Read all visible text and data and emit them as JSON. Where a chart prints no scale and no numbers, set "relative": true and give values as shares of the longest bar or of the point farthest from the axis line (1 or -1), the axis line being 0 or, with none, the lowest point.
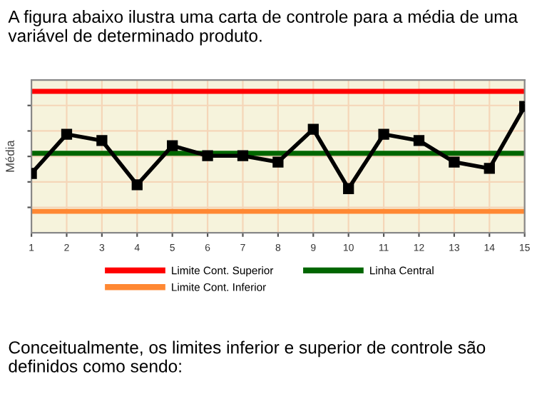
{
  "chart_data": {
    "type": "line",
    "title": "A figura abaixo ilustra uma carta de controle para a média de uma variável de determinado produto.",
    "ylabel": "Média",
    "x": [
      1,
      2,
      3,
      4,
      5,
      6,
      7,
      8,
      9,
      10,
      11,
      12,
      13,
      14,
      15
    ],
    "xlim": [
      1,
      15
    ],
    "xticks": [
      1,
      2,
      3,
      4,
      5,
      6,
      7,
      8,
      9,
      10,
      11,
      12,
      13,
      14,
      15
    ],
    "relative": true,
    "series": [
      {
        "color": "#000000",
        "values": [
          0.47,
          0.78,
          0.73,
          0.38,
          0.69,
          0.61,
          0.61,
          0.56,
          0.82,
          0.35,
          0.78,
          0.73,
          0.56,
          0.51,
          1
        ]
      }
    ],
    "marker": "square",
    "grid": true,
    "legend": "bottom",
    "ref_lines": [
      {
        "axis": "y",
        "value": 1.12,
        "label": "Limite Cont. Superior",
        "color": "#ff0000"
      },
      {
        "axis": "y",
        "value": 0.17,
        "label": "Limite Cont. Inferior",
        "color": "#ff8833"
      },
      {
        "axis": "y",
        "value": 0.63,
        "label": "Linha Central",
        "color": "#006600"
      }
    ],
    "annotations": [
      "Conceitualmente, os limites inferior e superior de controle são definidos como sendo:"
    ]
  }
}
